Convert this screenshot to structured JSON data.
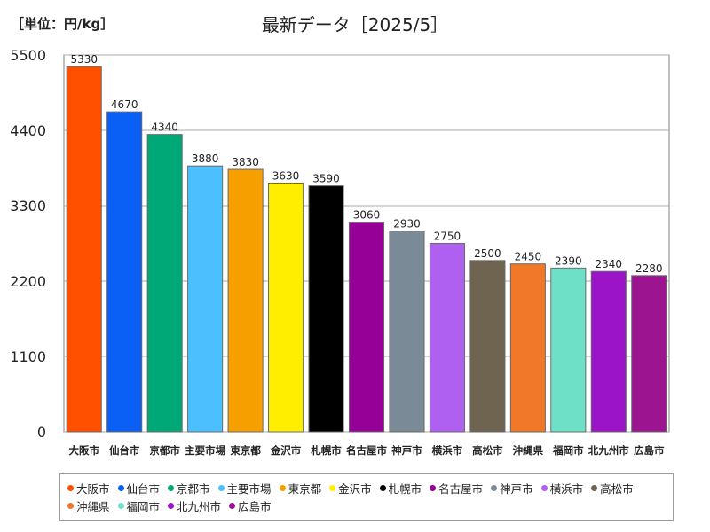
{
  "unit_label": "［単位：円/kg］",
  "chart_data": {
    "type": "bar",
    "title": "最新データ［2025/5］",
    "xlabel": "",
    "ylabel": "",
    "ylim": [
      0,
      5500
    ],
    "yticks": [
      0,
      1100,
      2200,
      3300,
      4400,
      5500
    ],
    "grid": true,
    "legend_position": "bottom",
    "categories": [
      "大阪市",
      "仙台市",
      "京都市",
      "主要市場",
      "東京都",
      "金沢市",
      "札幌市",
      "名古屋市",
      "神戸市",
      "横浜市",
      "高松市",
      "沖縄県",
      "福岡市",
      "北九州市",
      "広島市"
    ],
    "values": [
      5330,
      4670,
      4340,
      3880,
      3830,
      3630,
      3590,
      3060,
      2930,
      2750,
      2500,
      2450,
      2390,
      2340,
      2280
    ],
    "colors": [
      "#ff5000",
      "#0a5ff5",
      "#00a878",
      "#4cc0ff",
      "#f5a000",
      "#ffee00",
      "#000000",
      "#960096",
      "#7a8a96",
      "#b060f0",
      "#6e6450",
      "#f07828",
      "#6ee0c8",
      "#9c14c8",
      "#9c1490"
    ]
  },
  "legend": [
    {
      "label": "大阪市",
      "color": "#ff5000"
    },
    {
      "label": "仙台市",
      "color": "#0a5ff5"
    },
    {
      "label": "京都市",
      "color": "#00a878"
    },
    {
      "label": "主要市場",
      "color": "#4cc0ff"
    },
    {
      "label": "東京都",
      "color": "#f5a000"
    },
    {
      "label": "金沢市",
      "color": "#ffee00"
    },
    {
      "label": "札幌市",
      "color": "#000000"
    },
    {
      "label": "名古屋市",
      "color": "#960096"
    },
    {
      "label": "神戸市",
      "color": "#7a8a96"
    },
    {
      "label": "横浜市",
      "color": "#b060f0"
    },
    {
      "label": "高松市",
      "color": "#6e6450"
    },
    {
      "label": "沖縄県",
      "color": "#f07828"
    },
    {
      "label": "福岡市",
      "color": "#6ee0c8"
    },
    {
      "label": "北九州市",
      "color": "#9c14c8"
    },
    {
      "label": "広島市",
      "color": "#9c1490"
    }
  ]
}
